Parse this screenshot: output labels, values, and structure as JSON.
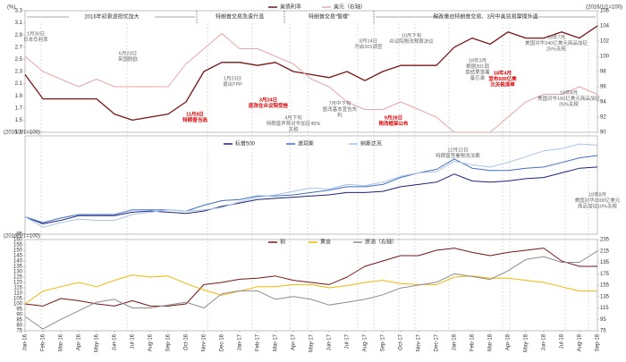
{
  "chart_data": [
    {
      "type": "line",
      "y_label": "(%)",
      "y2_label": "(2016/1/1=100)",
      "ylim": [
        1.3,
        3.3
      ],
      "yticks": [
        1.3,
        1.5,
        1.7,
        1.9,
        2.1,
        2.3,
        2.5,
        2.7,
        2.9,
        3.1,
        3.3
      ],
      "y2lim": [
        90,
        106
      ],
      "y2ticks": [
        90,
        92,
        94,
        96,
        98,
        100,
        102,
        104,
        106
      ],
      "series": [
        {
          "name": "美债利率",
          "color": "#7b1416",
          "values": [
            2.25,
            1.85,
            1.85,
            1.85,
            1.85,
            1.6,
            1.5,
            1.55,
            1.6,
            1.8,
            2.3,
            2.45,
            2.45,
            2.4,
            2.45,
            2.3,
            2.25,
            2.2,
            2.3,
            2.15,
            2.3,
            2.4,
            2.4,
            2.4,
            2.7,
            2.85,
            2.75,
            2.95,
            2.85,
            2.85,
            2.95,
            2.85,
            3.05
          ]
        },
        {
          "name": "美元（右轴）",
          "color": "#e9a6a6",
          "axis": "y2",
          "values": [
            100,
            98,
            97,
            96,
            97,
            96,
            96,
            96,
            96,
            99,
            101,
            103,
            101,
            101,
            100,
            99,
            97,
            96,
            94,
            93,
            93,
            94,
            93,
            92,
            90,
            90,
            90,
            92,
            94,
            95,
            95,
            96,
            95
          ]
        }
      ],
      "phases": [
        "2016年初衰退担忧加大",
        "特朗普交易急速升温",
        "特朗普交易“暂缓”",
        "税改重启特朗普交易、3月中美贸易摩擦升温"
      ],
      "annotations": [
        {
          "lines": [
            "1月30日",
            "日本负利率"
          ]
        },
        {
          "lines": [
            "6月23日",
            "英国脱欧"
          ]
        },
        {
          "lines": [
            "11月8日",
            "特朗普当选"
          ],
          "highlight": true
        },
        {
          "lines": [
            "1月23日",
            "退出TPP"
          ]
        },
        {
          "lines": [
            "3月24日",
            "医改在众议院受挫"
          ],
          "highlight": true
        },
        {
          "lines": [
            "4月下旬",
            "特朗普声称对华加征45%",
            "关税"
          ]
        },
        {
          "lines": [
            "7月中下旬",
            "医改基本宣告失",
            "利"
          ]
        },
        {
          "lines": [
            "8月14日",
            "开启301调查"
          ]
        },
        {
          "lines": [
            "9月28日",
            "税改框架公布"
          ],
          "highlight": true
        },
        {
          "lines": [
            "10月下旬",
            "众议院税改预算决议"
          ]
        },
        {
          "lines": [
            "18年3月",
            "根据301调",
            "查结果签署",
            "备忘录"
          ]
        },
        {
          "lines": [
            "18年4月",
            "宣布500亿美",
            "元关税清单"
          ],
          "highlight": true
        },
        {
          "lines": [
            "18年7月",
            "美国对华340亿美元商品加征",
            "25%关税"
          ]
        },
        {
          "lines": [
            "18年8月",
            "美国对华160亿美元商品加征",
            "25%关税"
          ]
        }
      ]
    },
    {
      "type": "line",
      "y_label": "(2016/1/1=100)",
      "ylim": [
        85,
        170
      ],
      "yticks": [
        85
      ],
      "series": [
        {
          "name": "标普500",
          "color": "#1a237e",
          "values": [
            100,
            94,
            97,
            101,
            101,
            101,
            104,
            105,
            104,
            103,
            105,
            109,
            112,
            115,
            116,
            117,
            118,
            119,
            121,
            121,
            122,
            126,
            128,
            130,
            137,
            131,
            130,
            131,
            133,
            134,
            138,
            142,
            143
          ]
        },
        {
          "name": "道琼斯",
          "color": "#3f6fc4",
          "values": [
            100,
            95,
            99,
            102,
            102,
            102,
            106,
            106,
            106,
            105,
            110,
            114,
            115,
            118,
            118,
            119,
            121,
            123,
            126,
            126,
            128,
            134,
            138,
            141,
            150,
            142,
            140,
            140,
            142,
            143,
            147,
            151,
            153
          ]
        },
        {
          "name": "纳斯达克",
          "color": "#a9c4ea",
          "values": [
            100,
            91,
            95,
            98,
            97,
            97,
            102,
            104,
            106,
            105,
            106,
            108,
            113,
            117,
            119,
            122,
            125,
            124,
            128,
            127,
            130,
            135,
            138,
            139,
            148,
            145,
            143,
            147,
            152,
            157,
            159,
            163,
            162
          ]
        }
      ],
      "annotations": [
        {
          "lines": [
            "12月22日",
            "特朗普签署税改法案"
          ]
        },
        {
          "lines": [
            "18年8月",
            "美国对华2000亿美元",
            "商品加征10%关税"
          ]
        }
      ]
    },
    {
      "type": "line",
      "y_label": "(2016/1/1=100)",
      "categories": [
        "Jan-16",
        "Feb-16",
        "Mar-16",
        "Apr-16",
        "May-16",
        "Jun-16",
        "Jul-16",
        "Aug-16",
        "Sep-16",
        "Oct-16",
        "Nov-16",
        "Dec-16",
        "Jan-17",
        "Feb-17",
        "Mar-17",
        "Apr-17",
        "May-17",
        "Jun-17",
        "Jul-17",
        "Aug-17",
        "Sep-17",
        "Oct-17",
        "Nov-17",
        "Dec-17",
        "Jan-18",
        "Feb-18",
        "Mar-18",
        "Apr-18",
        "May-18",
        "Jun-18",
        "Jul-18",
        "Aug-18",
        "Sep-18"
      ],
      "ylim": [
        75,
        160
      ],
      "yticks": [
        75,
        80,
        85,
        90,
        95,
        100,
        105,
        110,
        115,
        120,
        125,
        130,
        135,
        140,
        145,
        150,
        155,
        160
      ],
      "y2lim": [
        75,
        235
      ],
      "y2ticks": [
        75,
        95,
        115,
        135,
        155,
        175,
        195,
        215,
        235
      ],
      "series": [
        {
          "name": "铜",
          "color": "#7b1416",
          "values": [
            100,
            98,
            105,
            103,
            100,
            98,
            103,
            98,
            98,
            100,
            118,
            120,
            123,
            124,
            126,
            122,
            120,
            118,
            125,
            135,
            140,
            145,
            145,
            150,
            152,
            148,
            145,
            148,
            150,
            152,
            140,
            135,
            135
          ]
        },
        {
          "name": "黄金",
          "color": "#f2b705",
          "values": [
            100,
            112,
            116,
            120,
            116,
            122,
            127,
            125,
            126,
            119,
            113,
            108,
            112,
            116,
            116,
            118,
            118,
            115,
            117,
            120,
            122,
            119,
            118,
            118,
            125,
            126,
            124,
            124,
            122,
            120,
            116,
            112,
            112
          ]
        },
        {
          "name": "原油（右轴）",
          "color": "#8c8c8c",
          "axis": "y2",
          "values": [
            100,
            78,
            95,
            110,
            125,
            130,
            115,
            115,
            120,
            125,
            115,
            140,
            145,
            145,
            130,
            135,
            130,
            120,
            125,
            130,
            138,
            150,
            155,
            160,
            175,
            170,
            165,
            180,
            200,
            205,
            195,
            195,
            215
          ]
        }
      ]
    }
  ]
}
